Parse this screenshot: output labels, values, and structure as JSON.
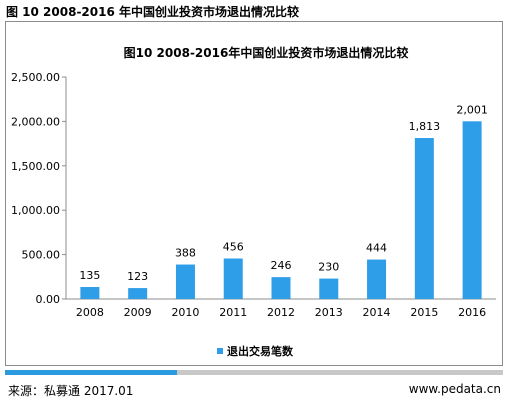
{
  "page": {
    "header_title": "图 10 2008-2016 年中国创业投资市场退出情况比较",
    "source": "来源：私募通 2017.01",
    "website": "www.pedata.cn"
  },
  "chart_data": {
    "type": "bar",
    "title": "图10 2008-2016年中国创业投资市场退出情况比较",
    "categories": [
      "2008",
      "2009",
      "2010",
      "2011",
      "2012",
      "2013",
      "2014",
      "2015",
      "2016"
    ],
    "series": [
      {
        "name": "退出交易笔数",
        "values": [
          135,
          123,
          388,
          456,
          246,
          230,
          444,
          1813,
          2001
        ],
        "labels": [
          "135",
          "123",
          "388",
          "456",
          "246",
          "230",
          "444",
          "1,813",
          "2,001"
        ]
      }
    ],
    "ylim": [
      0,
      2500
    ],
    "yticks": [
      0,
      500,
      1000,
      1500,
      2000,
      2500
    ],
    "ytick_labels": [
      "0.00",
      "500.00",
      "1,000.00",
      "1,500.00",
      "2,000.00",
      "2,500.00"
    ],
    "xlabel": "",
    "ylabel": "",
    "grid": false,
    "legend_position": "bottom",
    "bar_color": "#2e9ee8"
  }
}
